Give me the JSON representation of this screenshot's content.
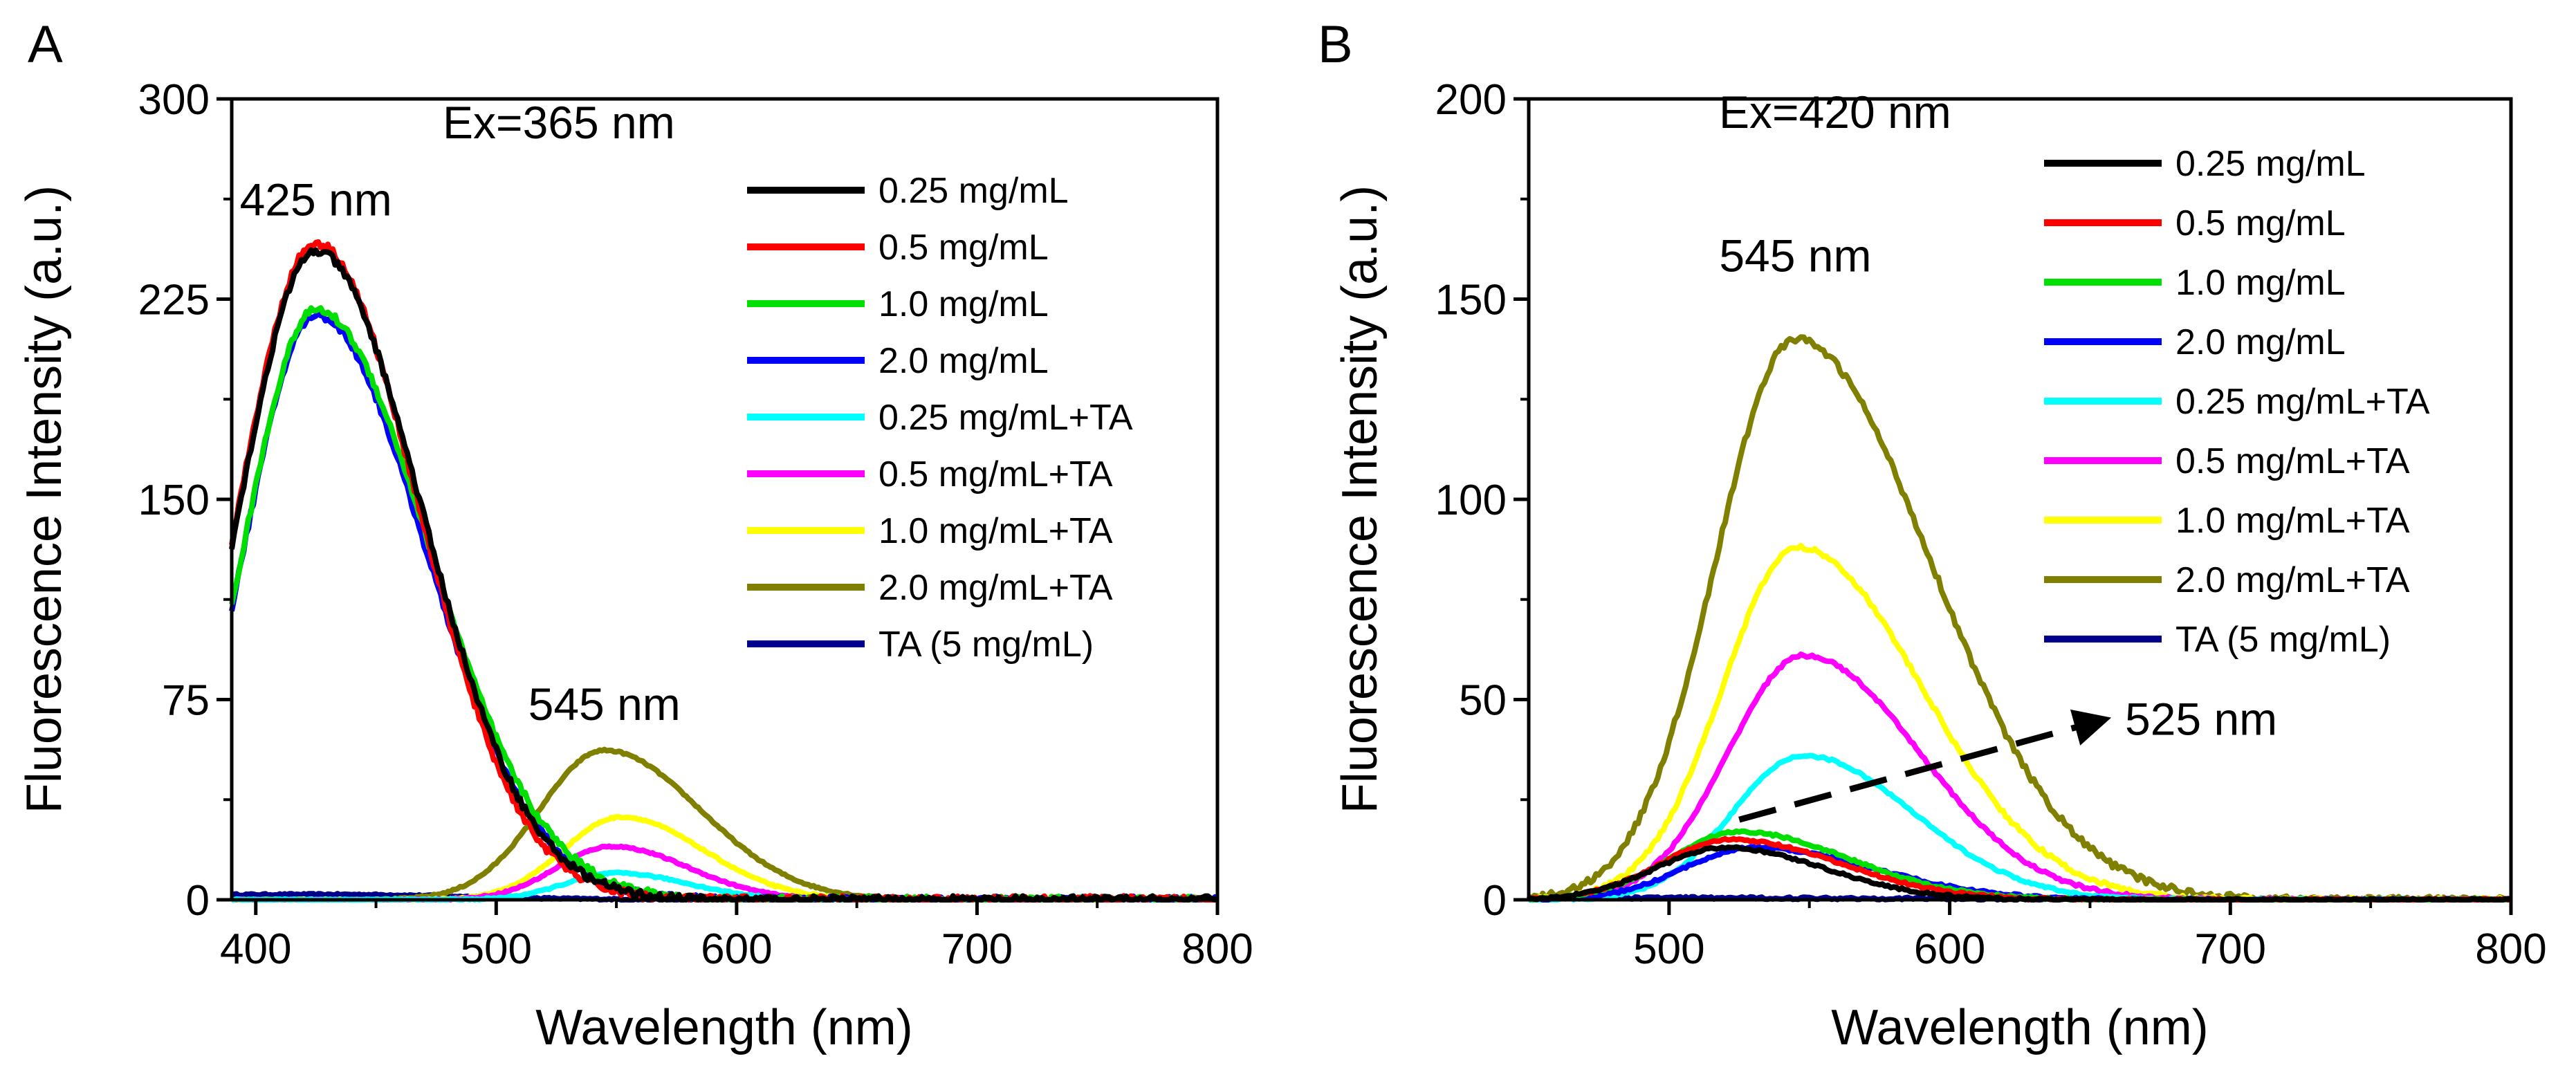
{
  "figure": {
    "panels": [
      "A",
      "B"
    ]
  },
  "chart_data": [
    {
      "type": "line",
      "panel": "A",
      "title": "",
      "excitation_label": "Ex=365 nm",
      "xlabel": "Wavelength (nm)",
      "ylabel": "Fluorescence Intensity (a.u.)",
      "xlim": [
        390,
        800
      ],
      "ylim": [
        0,
        300
      ],
      "xticks": [
        400,
        500,
        600,
        700,
        800
      ],
      "yticks": [
        0,
        75,
        150,
        225,
        300
      ],
      "legend_position": "top-right",
      "grid": false,
      "annotations": [
        {
          "text": "425 nm",
          "x": 425,
          "y": 246
        },
        {
          "text": "545 nm",
          "x": 545,
          "y": 57
        }
      ],
      "series": [
        {
          "name": "0.25 mg/mL",
          "color": "#000000",
          "peak_x": 425,
          "peak_y": 243,
          "width_left": 45,
          "width_right": 62,
          "x_start": 390,
          "x_end": 800
        },
        {
          "name": "0.5 mg/mL",
          "color": "#ff0000",
          "peak_x": 425,
          "peak_y": 246,
          "width_left": 45,
          "width_right": 60,
          "x_start": 390,
          "x_end": 800
        },
        {
          "name": "1.0 mg/mL",
          "color": "#00e000",
          "peak_x": 425,
          "peak_y": 221,
          "width_left": 42,
          "width_right": 66,
          "x_start": 390,
          "x_end": 800
        },
        {
          "name": "2.0 mg/mL",
          "color": "#0000ff",
          "peak_x": 425,
          "peak_y": 219,
          "width_left": 42,
          "width_right": 64,
          "x_start": 390,
          "x_end": 800
        },
        {
          "name": "0.25 mg/mL+TA",
          "color": "#00ffff",
          "peak_x": 550,
          "peak_y": 10,
          "width_left": 30,
          "width_right": 42,
          "x_start": 390,
          "x_end": 800
        },
        {
          "name": "0.5 mg/mL+TA",
          "color": "#ff00ff",
          "peak_x": 548,
          "peak_y": 20,
          "width_left": 32,
          "width_right": 45,
          "x_start": 390,
          "x_end": 800
        },
        {
          "name": "1.0 mg/mL+TA",
          "color": "#ffff00",
          "peak_x": 552,
          "peak_y": 31,
          "width_left": 34,
          "width_right": 48,
          "x_start": 390,
          "x_end": 800
        },
        {
          "name": "2.0 mg/mL+TA",
          "color": "#808000",
          "peak_x": 545,
          "peak_y": 56,
          "width_left": 38,
          "width_right": 56,
          "x_start": 390,
          "x_end": 800
        },
        {
          "name": "TA (5 mg/mL)",
          "color": "#00008b",
          "peak_x": 430,
          "peak_y": 2,
          "width_left": 200,
          "width_right": 80,
          "x_start": 390,
          "x_end": 800
        }
      ]
    },
    {
      "type": "line",
      "panel": "B",
      "title": "",
      "excitation_label": "Ex=420 nm",
      "xlabel": "Wavelength (nm)",
      "ylabel": "Fluorescence Intensity (a.u.)",
      "xlim": [
        450,
        800
      ],
      "ylim": [
        0,
        200
      ],
      "xticks": [
        500,
        600,
        700,
        800
      ],
      "yticks": [
        0,
        50,
        100,
        150,
        200
      ],
      "legend_position": "top-right",
      "grid": false,
      "annotations": [
        {
          "text": "545 nm",
          "x": 545,
          "y": 150
        },
        {
          "text": "525 nm",
          "x": 660,
          "y": 45
        }
      ],
      "arrow": {
        "from": [
          525,
          20
        ],
        "to": [
          655,
          45
        ]
      },
      "series": [
        {
          "name": "0.25 mg/mL",
          "color": "#000000",
          "peak_x": 520,
          "peak_y": 13,
          "width_left": 35,
          "width_right": 50,
          "x_start": 450,
          "x_end": 800
        },
        {
          "name": "0.5 mg/mL",
          "color": "#ff0000",
          "peak_x": 522,
          "peak_y": 15,
          "width_left": 35,
          "width_right": 55,
          "x_start": 450,
          "x_end": 800
        },
        {
          "name": "1.0 mg/mL",
          "color": "#00e000",
          "peak_x": 525,
          "peak_y": 17,
          "width_left": 35,
          "width_right": 55,
          "x_start": 450,
          "x_end": 800
        },
        {
          "name": "2.0 mg/mL",
          "color": "#0000ff",
          "peak_x": 530,
          "peak_y": 13,
          "width_left": 35,
          "width_right": 60,
          "x_start": 450,
          "x_end": 800
        },
        {
          "name": "0.25 mg/mL+TA",
          "color": "#00ffff",
          "peak_x": 548,
          "peak_y": 36,
          "width_left": 36,
          "width_right": 55,
          "x_start": 450,
          "x_end": 800
        },
        {
          "name": "0.5 mg/mL+TA",
          "color": "#ff00ff",
          "peak_x": 548,
          "peak_y": 61,
          "width_left": 38,
          "width_right": 58,
          "x_start": 450,
          "x_end": 800
        },
        {
          "name": "1.0 mg/mL+TA",
          "color": "#ffff00",
          "peak_x": 546,
          "peak_y": 88,
          "width_left": 38,
          "width_right": 62,
          "x_start": 450,
          "x_end": 800
        },
        {
          "name": "2.0 mg/mL+TA",
          "color": "#808000",
          "peak_x": 545,
          "peak_y": 140,
          "width_left": 40,
          "width_right": 68,
          "x_start": 450,
          "x_end": 800
        },
        {
          "name": "TA (5 mg/mL)",
          "color": "#00008b",
          "peak_x": 450,
          "peak_y": 0.5,
          "width_left": 200,
          "width_right": 200,
          "x_start": 450,
          "x_end": 800
        }
      ]
    }
  ]
}
